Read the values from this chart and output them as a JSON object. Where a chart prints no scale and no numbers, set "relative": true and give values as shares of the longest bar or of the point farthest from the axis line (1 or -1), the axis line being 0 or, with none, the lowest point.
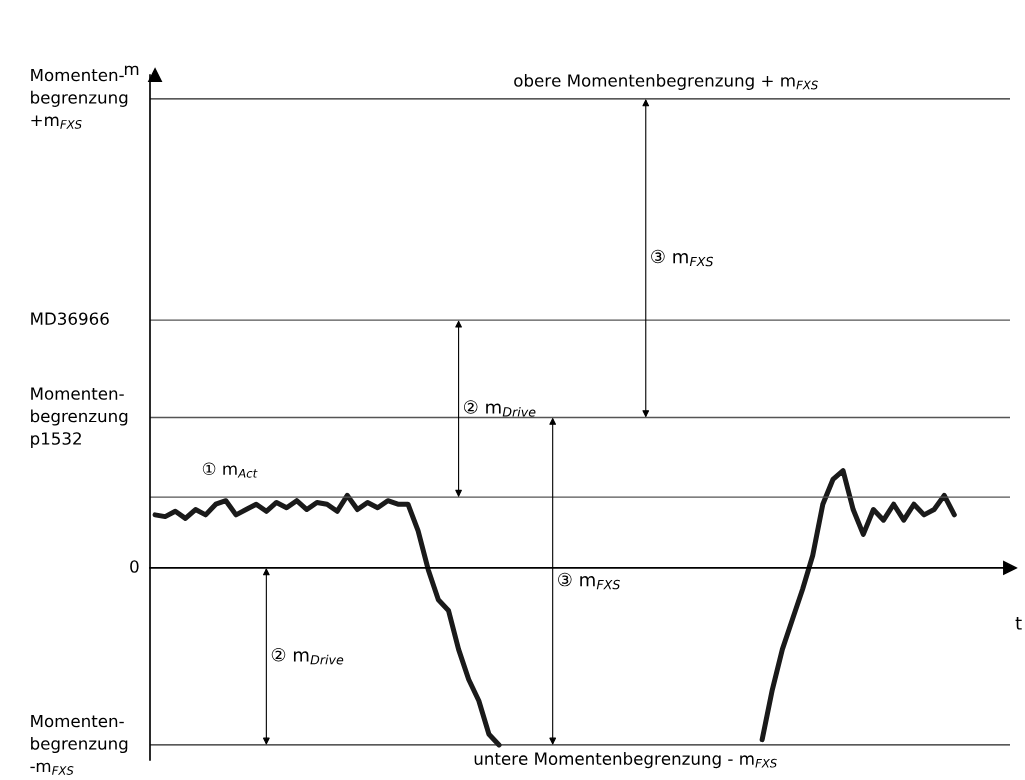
{
  "chart_data": {
    "type": "line",
    "relative": true,
    "xlabel": "t",
    "categories": [
      null,
      null,
      null,
      null,
      null,
      null,
      null,
      null,
      null,
      null,
      null,
      null,
      null,
      null,
      null,
      null,
      null,
      null,
      null,
      null,
      null,
      null,
      null,
      null,
      null,
      null,
      null,
      null,
      null,
      null,
      null,
      null,
      null,
      null,
      null,
      null,
      null,
      null,
      null,
      null,
      null,
      null,
      null,
      null,
      null,
      null,
      null,
      null,
      null,
      null,
      null,
      null,
      null,
      null,
      null,
      null,
      null,
      null,
      null,
      null,
      null,
      null,
      null,
      null,
      null,
      null,
      null,
      null,
      null,
      null,
      null,
      null,
      null,
      null,
      null,
      null,
      null,
      null,
      null,
      null
    ],
    "series": [
      {
        "color": "#1a1a1a",
        "line_style": "solid",
        "marker": "none",
        "values": [
          0.3,
          0.29,
          0.32,
          0.28,
          0.33,
          0.3,
          0.36,
          0.38,
          0.3,
          0.33,
          0.36,
          0.32,
          0.37,
          0.34,
          0.38,
          0.33,
          0.37,
          0.36,
          0.32,
          0.41,
          0.33,
          0.37,
          0.34,
          0.38,
          0.36,
          0.36,
          0.21,
          -0.01,
          -0.18,
          -0.24,
          -0.46,
          -0.63,
          -0.75,
          -0.94,
          -1.0,
          null,
          null,
          null,
          null,
          null,
          null,
          null,
          null,
          null,
          null,
          null,
          null,
          null,
          null,
          null,
          null,
          null,
          null,
          null,
          null,
          null,
          null,
          null,
          null,
          null,
          null,
          null,
          null,
          null,
          null,
          null,
          null,
          null,
          null,
          null,
          null,
          null,
          null,
          null,
          null,
          null,
          null,
          null,
          null,
          null
        ]
      },
      {
        "color": "#1a1a1a",
        "line_style": "solid",
        "marker": "none",
        "values": [
          null,
          null,
          null,
          null,
          null,
          null,
          null,
          null,
          null,
          null,
          null,
          null,
          null,
          null,
          null,
          null,
          null,
          null,
          null,
          null,
          null,
          null,
          null,
          null,
          null,
          null,
          null,
          null,
          null,
          null,
          null,
          null,
          null,
          null,
          null,
          null,
          null,
          null,
          null,
          null,
          null,
          null,
          null,
          null,
          null,
          null,
          null,
          null,
          null,
          null,
          null,
          null,
          null,
          null,
          null,
          null,
          null,
          null,
          null,
          null,
          -0.97,
          -0.69,
          -0.46,
          -0.29,
          -0.12,
          0.07,
          0.36,
          0.5,
          0.55,
          0.33,
          0.19,
          0.33,
          0.27,
          0.36,
          0.27,
          0.36,
          0.3,
          0.33,
          0.41,
          0.3
        ]
      }
    ],
    "ref_lines": [
      {
        "axis": "y",
        "value": 2.65,
        "label": "Momenten-\nbegrenzung\n+m$_{FXS}$",
        "color": "#222222"
      },
      {
        "axis": "y",
        "value": 1.4,
        "label": "MD36966",
        "color": "#555555"
      },
      {
        "axis": "y",
        "value": 0.85,
        "label": "Momenten-\nbegrenzung\np1532",
        "color": "#555555"
      },
      {
        "axis": "y",
        "value": 0.4,
        "color": "#555555"
      },
      {
        "axis": "y",
        "value": -1.0,
        "label": "Momenten-\nbegrenzung\n-m$_{FXS}$",
        "color": "#222222"
      }
    ],
    "annotations": [
      {
        "text": "obere Momentenbegrenzung + m$_{FXS}$",
        "y": 2.65
      },
      {
        "text": "untere Momentenbegrenzung - m$_{FXS}$",
        "y": -1.0
      },
      "① m$_{Act}$",
      "0",
      "m",
      "③ m$_{FXS}$",
      "② m$_{Drive}$",
      "③ m$_{FXS}$",
      "② m$_{Drive}$"
    ],
    "legend": false
  }
}
